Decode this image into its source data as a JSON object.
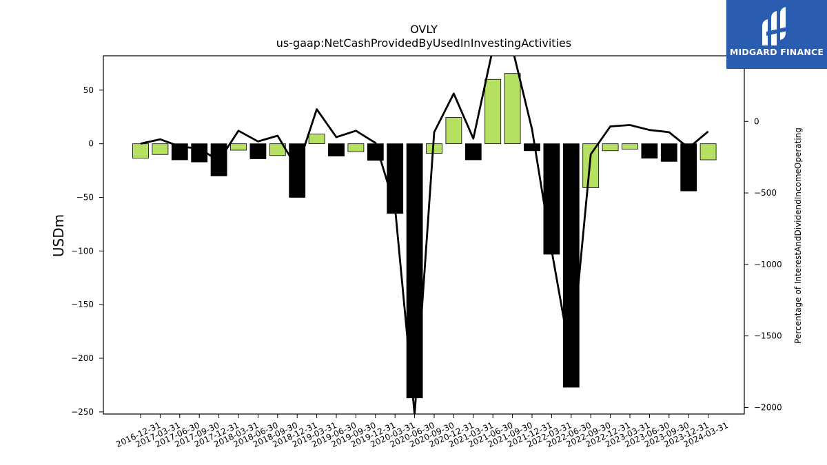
{
  "chart_data": {
    "type": "bar",
    "title": "OVLY",
    "subtitle": "us-gaap:NetCashProvidedByUsedInInvestingActivities",
    "ylabel": "USDm",
    "ylabel_right": "Percentage of InterestAndDividendIncomeOperating",
    "ylim": [
      -252,
      82
    ],
    "ylim_right": [
      -2046,
      459
    ],
    "yticks": [
      50,
      0,
      -50,
      -100,
      -150,
      -200,
      -250
    ],
    "yticks_right": [
      0,
      -500,
      -1000,
      -1500,
      -2000
    ],
    "categories": [
      "2016-12-31",
      "2017-03-31",
      "2017-06-30",
      "2017-09-30",
      "2017-12-31",
      "2018-03-31",
      "2018-06-30",
      "2018-09-30",
      "2018-12-31",
      "2019-03-31",
      "2019-06-30",
      "2019-09-30",
      "2019-12-31",
      "2020-03-31",
      "2020-06-30",
      "2020-09-30",
      "2020-12-31",
      "2021-03-31",
      "2021-06-30",
      "2021-09-30",
      "2021-12-31",
      "2022-03-31",
      "2022-06-30",
      "2022-09-30",
      "2022-12-31",
      "2023-03-31",
      "2023-06-30",
      "2023-09-30",
      "2023-12-31",
      "2024-03-31"
    ],
    "series": [
      {
        "type": "bar",
        "values": [
          -13.5,
          -10,
          -15,
          -17,
          -30,
          -6,
          -14,
          -11,
          -50,
          9,
          -11.5,
          -7.5,
          -15.5,
          -65,
          -237,
          -9,
          24.5,
          -15,
          60,
          65.5,
          -6.5,
          -103,
          -227,
          -41,
          -6.5,
          -5,
          -13.5,
          -16.5,
          -44,
          -15
        ]
      },
      {
        "type": "line",
        "axis": "right",
        "values": [
          -155,
          -125,
          -175,
          -190,
          -275,
          -65,
          -140,
          -100,
          -330,
          85,
          -110,
          -65,
          -150,
          -600,
          -2050,
          -75,
          195,
          -120,
          510,
          510,
          -55,
          -900,
          -1670,
          -230,
          -35,
          -25,
          -60,
          -75,
          -185,
          -70
        ]
      }
    ],
    "colors": {
      "bar_positive_growth": "#b5e061",
      "bar_negative_growth": "#000000",
      "bar_edge": "#000000",
      "line": "#000000"
    }
  },
  "logo": {
    "text": "MIDGARD FINANCE",
    "background": "#2a5cb0"
  }
}
